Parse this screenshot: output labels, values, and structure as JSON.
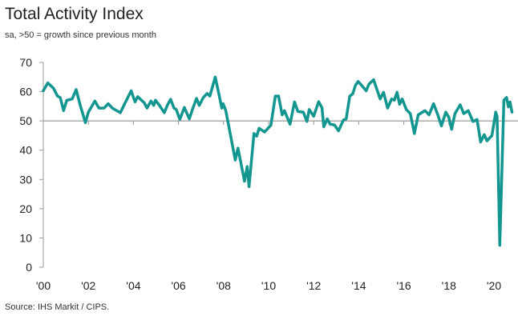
{
  "chart_data": {
    "type": "line",
    "title": "Total Activity Index",
    "subtitle": "sa, >50 = growth since previous month",
    "source": "Source: IHS Markit / CIPS.",
    "xlabel": "",
    "ylabel": "",
    "ylim": [
      0,
      70
    ],
    "xlim": [
      2000,
      2021
    ],
    "yticks": [
      "0",
      "10",
      "20",
      "30",
      "40",
      "50",
      "60",
      "70"
    ],
    "xticks": [
      {
        "year": 2000,
        "label": "'00"
      },
      {
        "year": 2002,
        "label": "'02"
      },
      {
        "year": 2004,
        "label": "'04"
      },
      {
        "year": 2006,
        "label": "'06"
      },
      {
        "year": 2008,
        "label": "'08"
      },
      {
        "year": 2010,
        "label": "'10"
      },
      {
        "year": 2012,
        "label": "'12"
      },
      {
        "year": 2014,
        "label": "'14"
      },
      {
        "year": 2016,
        "label": "'16"
      },
      {
        "year": 2018,
        "label": "'18"
      },
      {
        "year": 2020,
        "label": "'20"
      }
    ],
    "reference_line": 50,
    "grid": false,
    "legend": "none",
    "line_color": "#13968f",
    "series": [
      {
        "x": [
          2000.0,
          2000.2,
          2000.45,
          2000.63,
          2000.75,
          2000.9,
          2001.04,
          2001.28,
          2001.46,
          2001.64,
          2001.87,
          2002.0,
          2002.29,
          2002.47,
          2002.7,
          2002.88,
          2003.06,
          2003.42,
          2003.6,
          2003.9,
          2004.07,
          2004.19,
          2004.48,
          2004.6,
          2004.78,
          2004.9,
          2004.98,
          2005.2,
          2005.37,
          2005.5,
          2005.65,
          2005.8,
          2005.9,
          2006.06,
          2006.26,
          2006.48,
          2006.62,
          2006.8,
          2006.92,
          2007.1,
          2007.27,
          2007.39,
          2007.63,
          2007.8,
          2007.92,
          2007.98,
          2008.1,
          2008.28,
          2008.52,
          2008.64,
          2008.93,
          2009.05,
          2009.13,
          2009.35,
          2009.47,
          2009.58,
          2009.82,
          2010.1,
          2010.3,
          2010.44,
          2010.6,
          2010.7,
          2010.95,
          2011.15,
          2011.3,
          2011.54,
          2011.7,
          2011.8,
          2012.0,
          2012.22,
          2012.37,
          2012.45,
          2012.6,
          2012.73,
          2012.93,
          2013.1,
          2013.32,
          2013.44,
          2013.6,
          2013.73,
          2013.85,
          2013.97,
          2014.09,
          2014.33,
          2014.45,
          2014.66,
          2014.95,
          2015.1,
          2015.28,
          2015.46,
          2015.58,
          2015.7,
          2015.81,
          2015.93,
          2016.11,
          2016.29,
          2016.47,
          2016.64,
          2016.94,
          2017.12,
          2017.32,
          2017.53,
          2017.67,
          2017.86,
          2018.0,
          2018.12,
          2018.27,
          2018.5,
          2018.66,
          2018.86,
          2019.07,
          2019.25,
          2019.41,
          2019.57,
          2019.69,
          2019.91,
          2020.08,
          2020.14,
          2020.26,
          2020.44,
          2020.56,
          2020.64,
          2020.71,
          2020.8
        ],
        "values": [
          60.3,
          63,
          61.2,
          58.5,
          58,
          53.5,
          57,
          57.5,
          60.7,
          55.3,
          49.4,
          53,
          56.8,
          54.4,
          54.4,
          55.9,
          54.4,
          52.8,
          55.7,
          60.3,
          56.5,
          58.3,
          56.2,
          54.4,
          56.8,
          55.3,
          57.1,
          54.8,
          52.8,
          55.3,
          57.4,
          54.4,
          53.9,
          50.5,
          54.6,
          50.7,
          53.9,
          57.7,
          55.3,
          58,
          59.4,
          58.5,
          65,
          58.9,
          54.4,
          55.9,
          53.5,
          46.2,
          36.6,
          40.7,
          29.4,
          34.4,
          27.5,
          45.7,
          44.8,
          47.5,
          46.2,
          48.5,
          58.5,
          58.5,
          52.1,
          53.5,
          48.9,
          56.5,
          53.2,
          53,
          49.8,
          53.9,
          51.6,
          56.6,
          54.4,
          48,
          50.7,
          48.9,
          48.6,
          46.6,
          50.3,
          50.7,
          58.5,
          59.2,
          62.1,
          63.5,
          62.5,
          60.3,
          62.5,
          64.1,
          57.5,
          59.8,
          54.4,
          57.5,
          57.1,
          59.8,
          55.7,
          57.5,
          53.9,
          52.5,
          45.7,
          52.1,
          53.5,
          52.1,
          55.9,
          51.6,
          48.3,
          53,
          51.2,
          47.1,
          52.5,
          55.5,
          52.5,
          53.5,
          49.8,
          50.5,
          42.8,
          45.3,
          43.2,
          45,
          53,
          51.6,
          7.5,
          57.1,
          58,
          54.8,
          56.5,
          53
        ]
      }
    ]
  }
}
